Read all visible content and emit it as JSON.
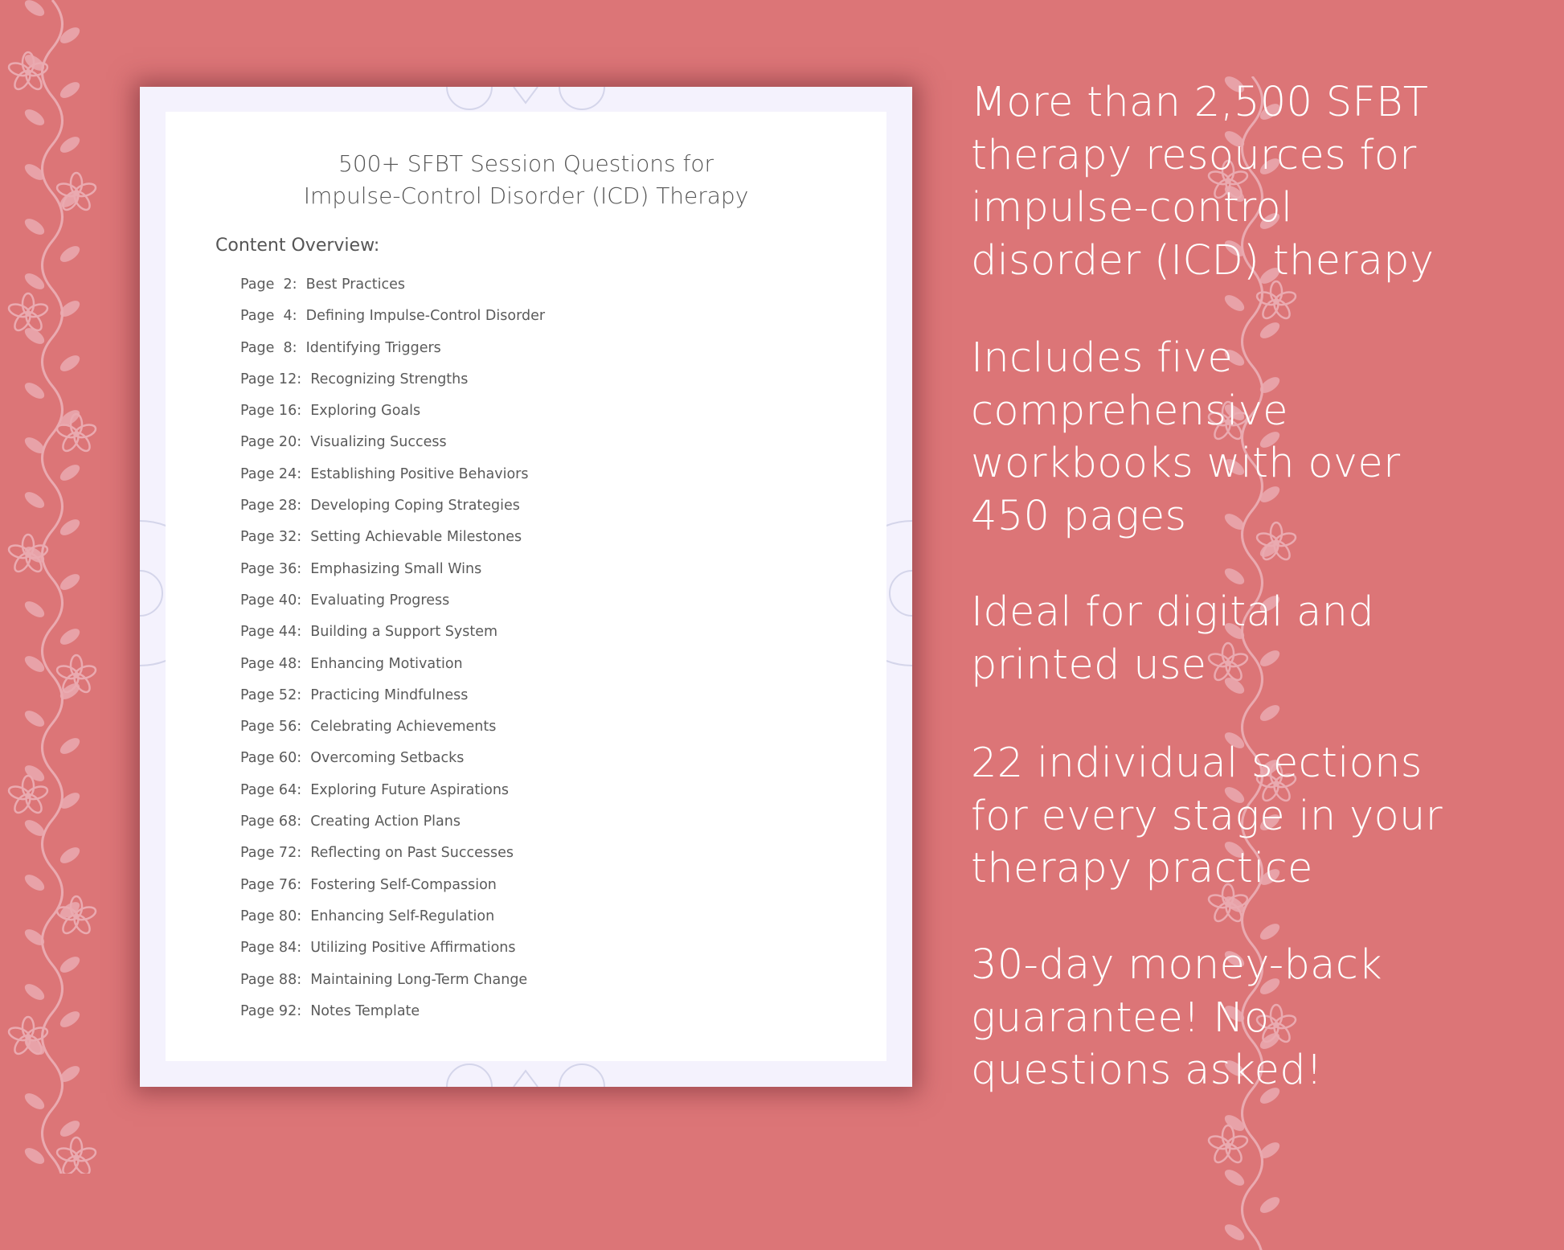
{
  "colors": {
    "background": "#dc7577",
    "vine": "#eaaab0",
    "document_border": "#f4f2fd",
    "document_page": "#ffffff",
    "text_dark": "#555555",
    "text_light": "#ffffff"
  },
  "document": {
    "title_line1": "500+ SFBT Session Questions for",
    "title_line2": "Impulse-Control Disorder (ICD) Therapy",
    "overview_label": "Content Overview:",
    "toc": [
      "Page  2:  Best Practices",
      "Page  4:  Defining Impulse-Control Disorder",
      "Page  8:  Identifying Triggers",
      "Page 12:  Recognizing Strengths",
      "Page 16:  Exploring Goals",
      "Page 20:  Visualizing Success",
      "Page 24:  Establishing Positive Behaviors",
      "Page 28:  Developing Coping Strategies",
      "Page 32:  Setting Achievable Milestones",
      "Page 36:  Emphasizing Small Wins",
      "Page 40:  Evaluating Progress",
      "Page 44:  Building a Support System",
      "Page 48:  Enhancing Motivation",
      "Page 52:  Practicing Mindfulness",
      "Page 56:  Celebrating Achievements",
      "Page 60:  Overcoming Setbacks",
      "Page 64:  Exploring Future Aspirations",
      "Page 68:  Creating Action Plans",
      "Page 72:  Reflecting on Past Successes",
      "Page 76:  Fostering Self-Compassion",
      "Page 80:  Enhancing Self-Regulation",
      "Page 84:  Utilizing Positive Affirmations",
      "Page 88:  Maintaining Long-Term Change",
      "Page 92:  Notes Template"
    ]
  },
  "features": [
    "More than 2,500 SFBT therapy resources for impulse-control disorder (ICD) therapy",
    "Includes five comprehensive workbooks with over 450 pages",
    "Ideal for digital and printed use",
    "22 individual sections for every stage in your therapy practice",
    "30-day money-back guarantee! No questions asked!"
  ]
}
